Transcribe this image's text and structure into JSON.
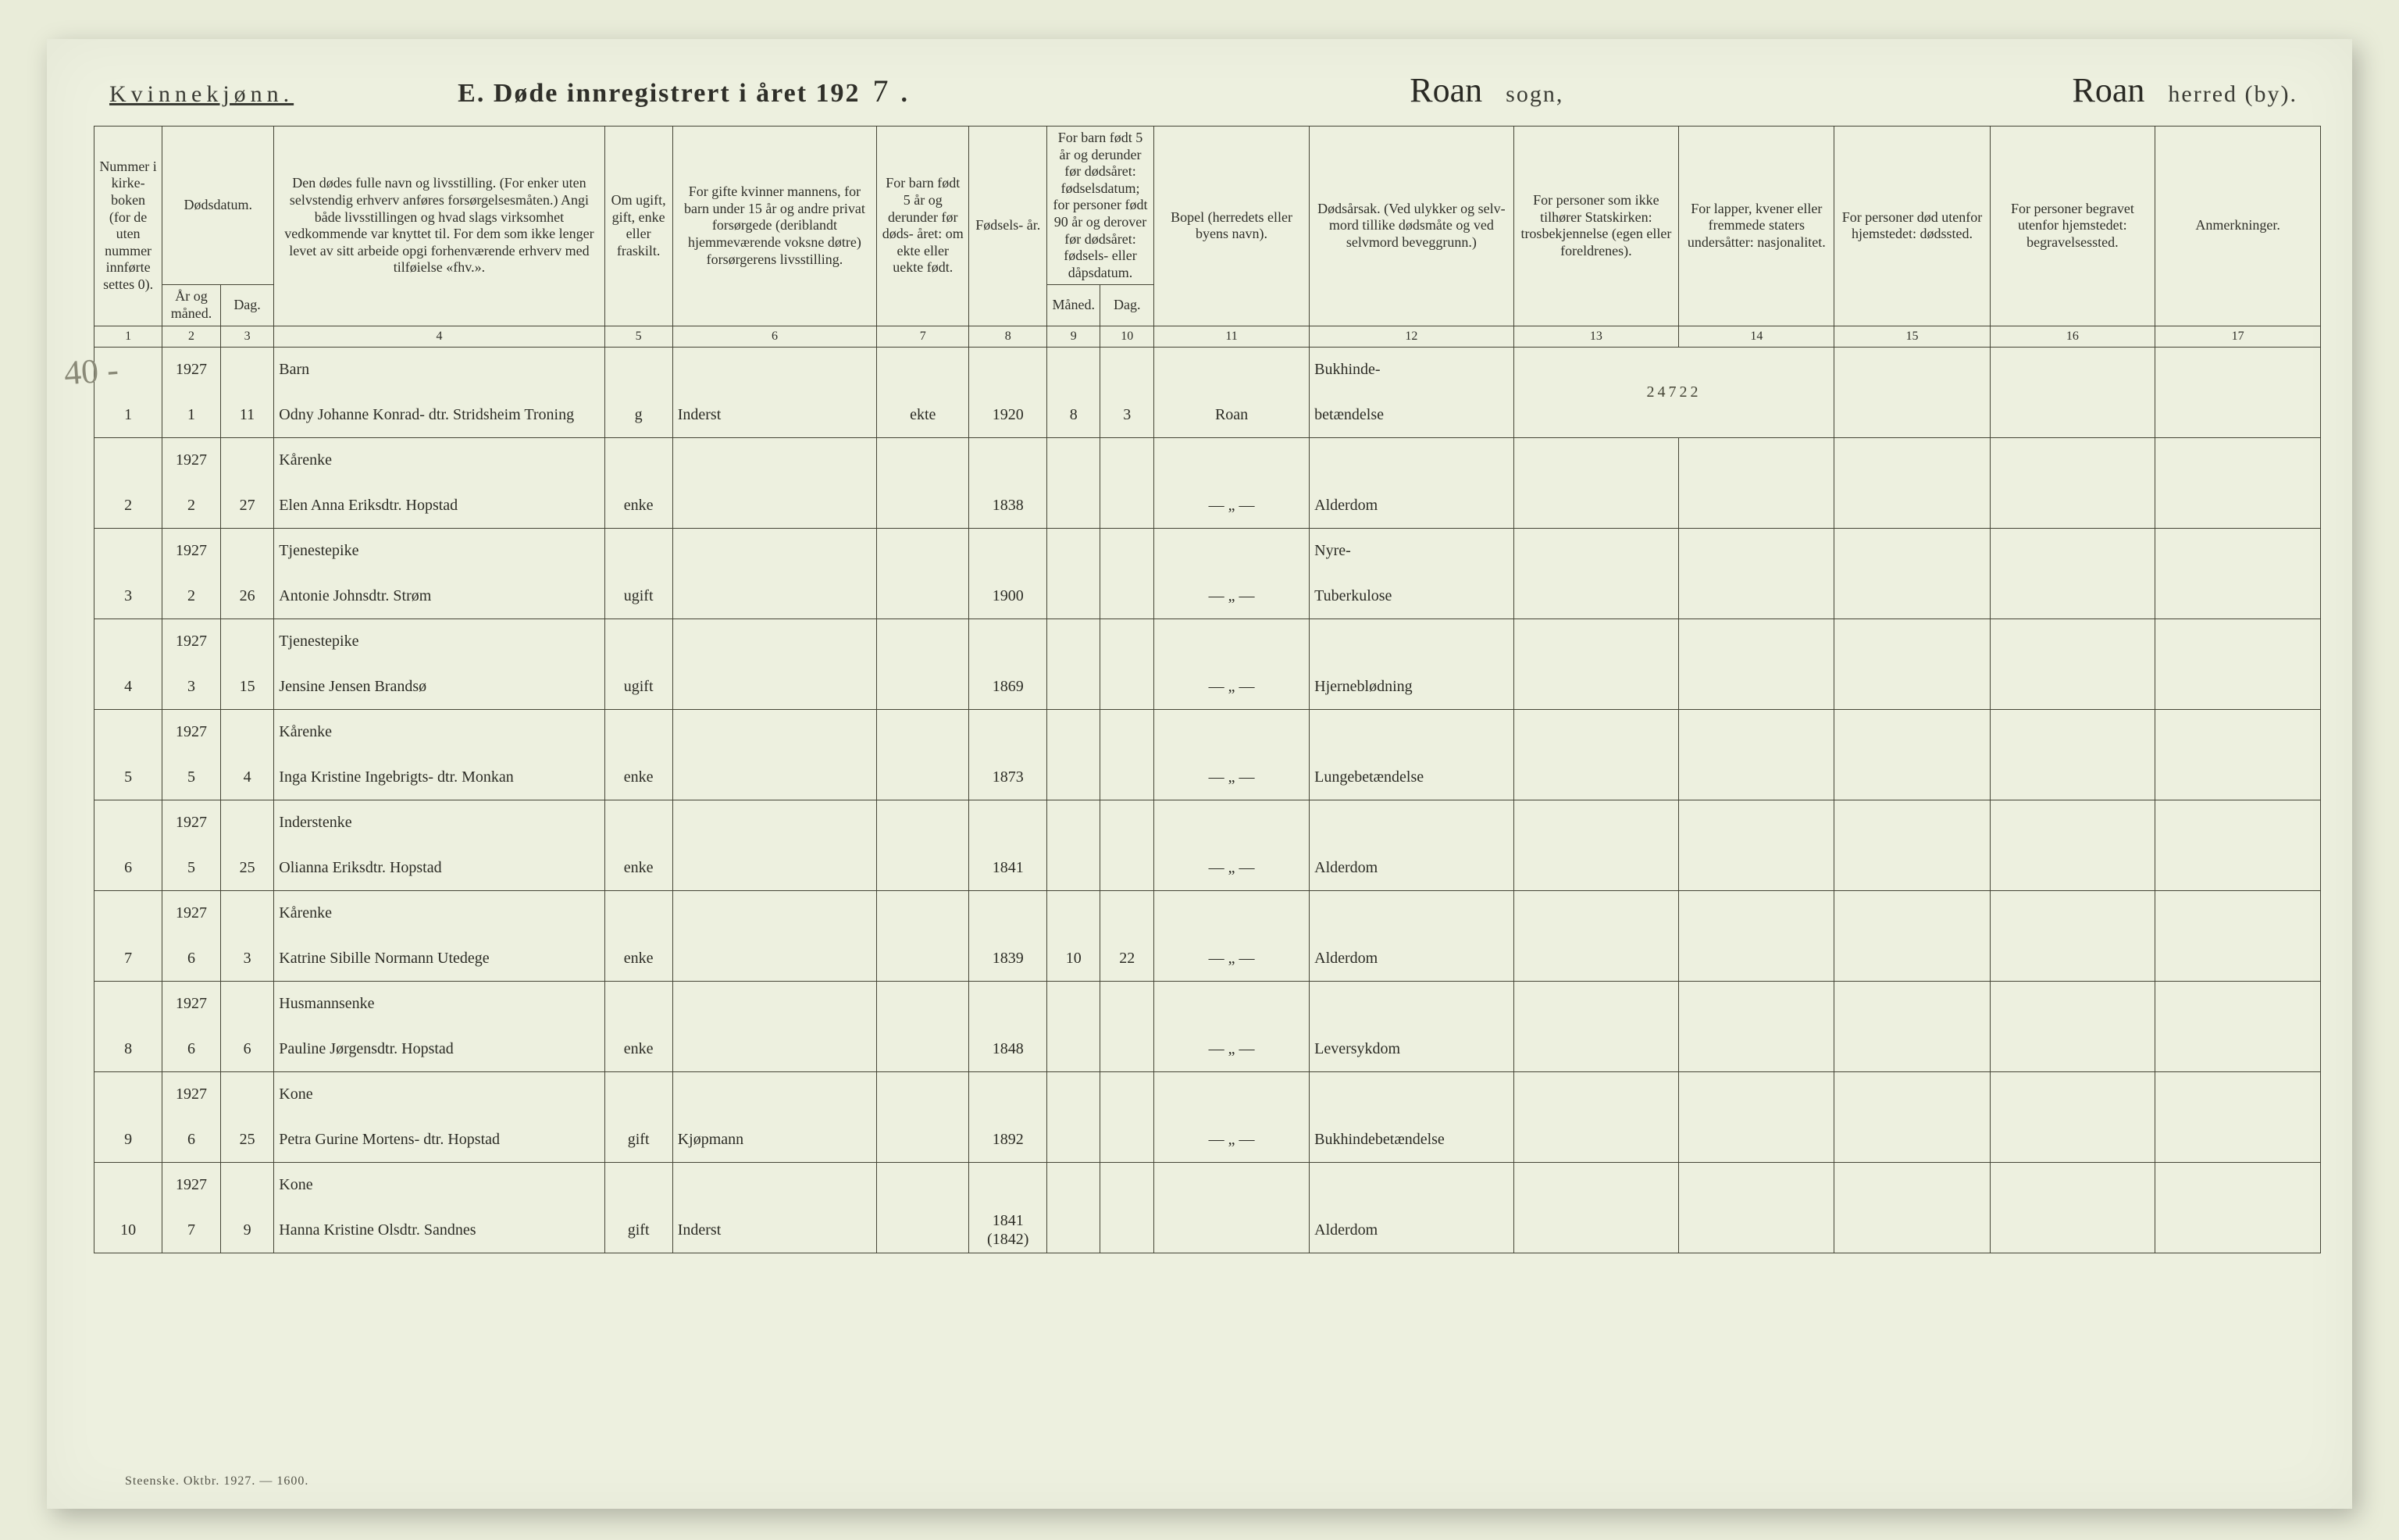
{
  "header": {
    "gender_label": "Kvinnekjønn.",
    "form_title_prefix": "E.   Døde innregistrert i året 192",
    "year_digit": "7",
    "period": ".",
    "sogn_value": "Roan",
    "sogn_label": "sogn,",
    "herred_value": "Roan",
    "herred_label": "herred (by)."
  },
  "margin_note": "40 -",
  "columns": {
    "h1": "Nummer i kirke- boken (for de uten nummer innførte settes 0).",
    "h2_top": "Dødsdatum.",
    "h2a": "År og måned.",
    "h2b": "Dag.",
    "h4": "Den dødes fulle navn og livsstilling. (For enker uten selvstendig erhverv anføres forsørgelsesmåten.) Angi både livsstillingen og hvad slags virksomhet vedkommende var knyttet til. For dem som ikke lenger levet av sitt arbeide opgi forhenværende erhverv med tilføielse «fhv.».",
    "h5": "Om ugift, gift, enke eller fraskilt.",
    "h6": "For gifte kvinner mannens, for barn under 15 år og andre privat forsørgede (deriblandt hjemmeværende voksne døtre) forsørgerens livsstilling.",
    "h7": "For barn født 5 år og derunder før døds- året: om ekte eller uekte født.",
    "h8": "Fødsels- år.",
    "h9_top": "For barn født 5 år og derunder før dødsåret: fødselsdatum; for personer født 90 år og derover før dødsåret: fødsels- eller dåpsdatum.",
    "h9a": "Måned.",
    "h9b": "Dag.",
    "h11": "Bopel (herredets eller byens navn).",
    "h12": "Dødsårsak. (Ved ulykker og selv- mord tillike dødsmåte og ved selvmord beveggrunn.)",
    "h13": "For personer som ikke tilhører Statskirken: trosbekjennelse (egen eller foreldrenes).",
    "h14": "For lapper, kvener eller fremmede staters undersåtter: nasjonalitet.",
    "h15": "For personer død utenfor hjemstedet: dødssted.",
    "h16": "For personer begravet utenfor hjemstedet: begravelsessted.",
    "h17": "Anmerkninger.",
    "nums": [
      "1",
      "2",
      "3",
      "4",
      "5",
      "6",
      "7",
      "8",
      "9",
      "10",
      "11",
      "12",
      "13",
      "14",
      "15",
      "16",
      "17"
    ]
  },
  "rows": [
    {
      "num": "1",
      "year": "1927",
      "month": "1",
      "day": "11",
      "name_top": "Barn",
      "name_bot": "Odny Johanne Konrad- dtr. Stridsheim Troning",
      "status": "g",
      "occ": "Inderst",
      "ekte": "ekte",
      "birth": "1920",
      "bm": "8",
      "bd": "3",
      "bopel": "Roan",
      "cause_top": "Bukhinde-",
      "cause_bot": "betændelse",
      "col13_14": "24722"
    },
    {
      "num": "2",
      "year": "1927",
      "month": "2",
      "day": "27",
      "name_top": "Kårenke",
      "name_bot": "Elen Anna Eriksdtr. Hopstad",
      "status": "enke",
      "occ": "",
      "ekte": "",
      "birth": "1838",
      "bm": "",
      "bd": "",
      "bopel": "— „ —",
      "cause_top": "",
      "cause_bot": "Alderdom",
      "col13_14": ""
    },
    {
      "num": "3",
      "year": "1927",
      "month": "2",
      "day": "26",
      "name_top": "Tjenestepike",
      "name_bot": "Antonie Johnsdtr. Strøm",
      "status": "ugift",
      "occ": "",
      "ekte": "",
      "birth": "1900",
      "bm": "",
      "bd": "",
      "bopel": "— „ —",
      "cause_top": "Nyre-",
      "cause_bot": "Tuberkulose",
      "col13_14": ""
    },
    {
      "num": "4",
      "year": "1927",
      "month": "3",
      "day": "15",
      "name_top": "Tjenestepike",
      "name_bot": "Jensine Jensen Brandsø",
      "status": "ugift",
      "occ": "",
      "ekte": "",
      "birth": "1869",
      "bm": "",
      "bd": "",
      "bopel": "— „ —",
      "cause_top": "",
      "cause_bot": "Hjerneblødning",
      "col13_14": ""
    },
    {
      "num": "5",
      "year": "1927",
      "month": "5",
      "day": "4",
      "name_top": "Kårenke",
      "name_bot": "Inga Kristine Ingebrigts- dtr. Monkan",
      "status": "enke",
      "occ": "",
      "ekte": "",
      "birth": "1873",
      "bm": "",
      "bd": "",
      "bopel": "— „ —",
      "cause_top": "",
      "cause_bot": "Lungebetændelse",
      "col13_14": ""
    },
    {
      "num": "6",
      "year": "1927",
      "month": "5",
      "day": "25",
      "name_top": "Inderstenke",
      "name_bot": "Olianna Eriksdtr. Hopstad",
      "status": "enke",
      "occ": "",
      "ekte": "",
      "birth": "1841",
      "bm": "",
      "bd": "",
      "bopel": "— „ —",
      "cause_top": "",
      "cause_bot": "Alderdom",
      "col13_14": ""
    },
    {
      "num": "7",
      "year": "1927",
      "month": "6",
      "day": "3",
      "name_top": "Kårenke",
      "name_bot": "Katrine Sibille Normann Utedege",
      "status": "enke",
      "occ": "",
      "ekte": "",
      "birth": "1839",
      "bm": "10",
      "bd": "22",
      "bopel": "— „ —",
      "cause_top": "",
      "cause_bot": "Alderdom",
      "col13_14": ""
    },
    {
      "num": "8",
      "year": "1927",
      "month": "6",
      "day": "6",
      "name_top": "Husmannsenke",
      "name_bot": "Pauline Jørgensdtr. Hopstad",
      "status": "enke",
      "occ": "",
      "ekte": "",
      "birth": "1848",
      "bm": "",
      "bd": "",
      "bopel": "— „ —",
      "cause_top": "",
      "cause_bot": "Leversykdom",
      "col13_14": ""
    },
    {
      "num": "9",
      "year": "1927",
      "month": "6",
      "day": "25",
      "name_top": "Kone",
      "name_bot": "Petra Gurine Mortens- dtr. Hopstad",
      "status": "gift",
      "occ": "Kjøpmann",
      "ekte": "",
      "birth": "1892",
      "bm": "",
      "bd": "",
      "bopel": "— „ —",
      "cause_top": "",
      "cause_bot": "Bukhindebetændelse",
      "col13_14": ""
    },
    {
      "num": "10",
      "year": "1927",
      "month": "7",
      "day": "9",
      "name_top": "Kone",
      "name_bot": "Hanna Kristine Olsdtr. Sandnes",
      "status": "gift",
      "occ": "Inderst",
      "ekte": "",
      "birth": "1841 (1842)",
      "bm": "",
      "bd": "",
      "bopel": "",
      "cause_top": "",
      "cause_bot": "Alderdom",
      "col13_14": ""
    }
  ],
  "footer": "Steenske. Oktbr. 1927. — 1600."
}
